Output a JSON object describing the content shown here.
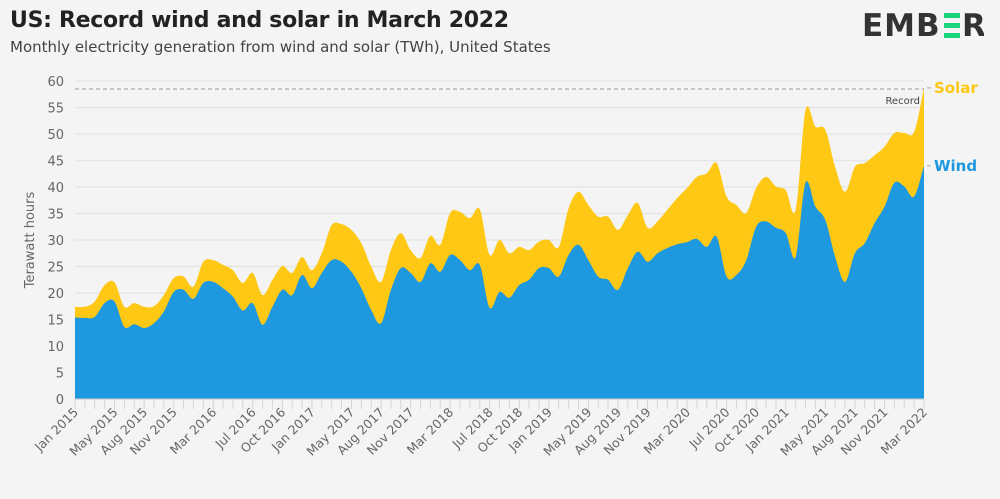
{
  "header": {
    "title": "US: Record wind and solar in March 2022",
    "subtitle": "Monthly electricity generation from wind and solar (TWh), United States",
    "logo_text": "EMBER"
  },
  "colors": {
    "wind": "#1e98de",
    "solar": "#fec815",
    "logo_dark": "#333333",
    "logo_accent": "#1bd47c"
  },
  "chart_data": {
    "type": "area",
    "stacked": true,
    "title": "US: Record wind and solar in March 2022",
    "ylabel": "Terawatt hours",
    "xlabel": "",
    "ylim": [
      0,
      60
    ],
    "yticks": [
      0,
      5,
      10,
      15,
      20,
      25,
      30,
      35,
      40,
      45,
      50,
      55,
      60
    ],
    "grid": true,
    "x_start": "Jan 2015",
    "x_end": "Mar 2022",
    "xtick_labels": [
      {
        "i": 0,
        "label": "Jan 2015"
      },
      {
        "i": 4,
        "label": "May 2015"
      },
      {
        "i": 7,
        "label": "Aug 2015"
      },
      {
        "i": 10,
        "label": "Nov 2015"
      },
      {
        "i": 14,
        "label": "Mar 2016"
      },
      {
        "i": 18,
        "label": "Jul 2016"
      },
      {
        "i": 21,
        "label": "Oct 2016"
      },
      {
        "i": 24,
        "label": "Jan 2017"
      },
      {
        "i": 28,
        "label": "May 2017"
      },
      {
        "i": 31,
        "label": "Aug 2017"
      },
      {
        "i": 34,
        "label": "Nov 2017"
      },
      {
        "i": 38,
        "label": "Mar 2018"
      },
      {
        "i": 42,
        "label": "Jul 2018"
      },
      {
        "i": 45,
        "label": "Oct 2018"
      },
      {
        "i": 48,
        "label": "Jan 2019"
      },
      {
        "i": 52,
        "label": "May 2019"
      },
      {
        "i": 55,
        "label": "Aug 2019"
      },
      {
        "i": 58,
        "label": "Nov 2019"
      },
      {
        "i": 62,
        "label": "Mar 2020"
      },
      {
        "i": 66,
        "label": "Jul 2020"
      },
      {
        "i": 69,
        "label": "Oct 2020"
      },
      {
        "i": 72,
        "label": "Jan 2021"
      },
      {
        "i": 76,
        "label": "May 2021"
      },
      {
        "i": 79,
        "label": "Aug 2021"
      },
      {
        "i": 82,
        "label": "Nov 2021"
      },
      {
        "i": 86,
        "label": "Mar 2022"
      }
    ],
    "series": [
      {
        "name": "Wind",
        "values": [
          15.4,
          15.3,
          15.5,
          18.1,
          18.4,
          13.6,
          14.1,
          13.4,
          14.3,
          16.5,
          20.2,
          20.6,
          18.9,
          21.9,
          22.1,
          20.9,
          19.3,
          16.7,
          18.1,
          14.0,
          17.4,
          20.6,
          19.6,
          23.4,
          20.9,
          23.8,
          26.2,
          25.9,
          24.0,
          20.9,
          16.8,
          14.3,
          20.6,
          24.7,
          23.8,
          22.1,
          25.6,
          24.0,
          27.2,
          26.2,
          24.3,
          25.3,
          17.2,
          20.2,
          19.1,
          21.5,
          22.5,
          24.7,
          24.7,
          23.1,
          27.2,
          29.1,
          26.2,
          23.1,
          22.5,
          20.6,
          24.7,
          27.8,
          25.9,
          27.5,
          28.5,
          29.2,
          29.6,
          30.2,
          28.7,
          30.6,
          23.1,
          23.4,
          26.2,
          32.5,
          33.5,
          32.3,
          31.3,
          26.8,
          40.8,
          36.3,
          33.8,
          26.8,
          22.1,
          27.5,
          29.4,
          33.2,
          36.3,
          40.8,
          40.1,
          38.2,
          44.0
        ]
      },
      {
        "name": "Solar",
        "values": [
          2.0,
          2.1,
          2.9,
          3.4,
          3.6,
          3.8,
          4.0,
          4.0,
          3.2,
          3.1,
          2.6,
          2.5,
          2.3,
          4.0,
          4.1,
          4.4,
          5.0,
          5.2,
          5.7,
          5.6,
          5.1,
          4.5,
          4.2,
          3.4,
          3.4,
          3.7,
          6.6,
          7.1,
          7.9,
          8.5,
          8.2,
          7.8,
          7.5,
          6.6,
          4.3,
          4.5,
          5.2,
          5.1,
          7.9,
          9.1,
          9.8,
          10.5,
          10.0,
          9.8,
          8.4,
          7.2,
          5.6,
          5.0,
          5.3,
          5.6,
          8.8,
          10.0,
          10.4,
          11.3,
          11.9,
          11.3,
          10.0,
          9.2,
          6.4,
          6.0,
          7.2,
          8.7,
          10.2,
          11.7,
          13.9,
          13.9,
          15.1,
          13.2,
          8.9,
          7.3,
          8.4,
          7.8,
          8.1,
          8.9,
          13.7,
          15.1,
          17.0,
          17.0,
          17.0,
          16.3,
          15.1,
          12.8,
          11.3,
          9.4,
          10.1,
          12.2,
          14.7
        ]
      }
    ],
    "annotations": [
      {
        "label": "Record",
        "value": 58.5
      }
    ],
    "legend": "right-end labels"
  }
}
